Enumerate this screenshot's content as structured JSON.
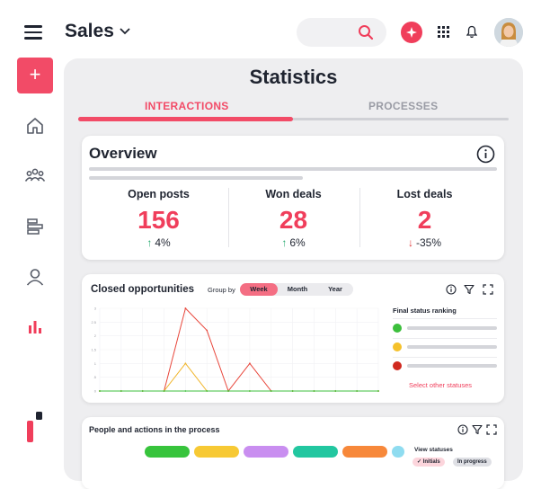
{
  "header": {
    "app_title": "Sales",
    "search": {
      "placeholder": ""
    },
    "colors": {
      "accent": "#f03e5b"
    }
  },
  "sidebar": {
    "add_label": "+",
    "items": [
      {
        "icon": "home-icon"
      },
      {
        "icon": "team-icon"
      },
      {
        "icon": "process-icon"
      },
      {
        "icon": "contact-icon"
      },
      {
        "icon": "statistics-icon",
        "active": true
      }
    ]
  },
  "page": {
    "title": "Statistics",
    "tabs": [
      {
        "label": "INTERACTIONS",
        "active": true
      },
      {
        "label": "PROCESSES",
        "active": false
      }
    ]
  },
  "overview": {
    "title": "Overview",
    "kpis": [
      {
        "label": "Open posts",
        "value": "156",
        "delta": "4%",
        "direction": "up"
      },
      {
        "label": "Won deals",
        "value": "28",
        "delta": "6%",
        "direction": "up"
      },
      {
        "label": "Lost deals",
        "value": "2",
        "delta": "-35%",
        "direction": "down"
      }
    ]
  },
  "closed_opportunities": {
    "title": "Closed opportunities",
    "group_by_label": "Group by",
    "group_options": [
      "Week",
      "Month",
      "Year"
    ],
    "group_selected": "Week",
    "ranking_title": "Final status ranking",
    "ranking": [
      {
        "color": "#3cbf3c"
      },
      {
        "color": "#f5c12b"
      },
      {
        "color": "#d0291f"
      }
    ],
    "select_link": "Select other statuses"
  },
  "chart_data": {
    "type": "line",
    "x": [
      0,
      1,
      2,
      3,
      4,
      5,
      6,
      7,
      8,
      9,
      10,
      11,
      12,
      13
    ],
    "series": [
      {
        "color": "#e8463b",
        "values": [
          0,
          0,
          0,
          0,
          3.0,
          2.2,
          0,
          1.0,
          0,
          0,
          0,
          0,
          0,
          0
        ]
      },
      {
        "color": "#f0b429",
        "values": [
          0,
          0,
          0,
          0,
          1.0,
          0,
          0,
          0,
          0,
          0,
          0,
          0,
          0,
          0
        ]
      },
      {
        "color": "#3cbf3c",
        "values": [
          0,
          0,
          0,
          0,
          0,
          0,
          0,
          0,
          0,
          0,
          0,
          0,
          0,
          0
        ]
      }
    ],
    "ylim": [
      0,
      3
    ],
    "yticks": [
      "3",
      "2.5",
      "2",
      "1.5",
      "1",
      ".5",
      "0"
    ],
    "grid": true,
    "title": "",
    "xlabel": "",
    "ylabel": ""
  },
  "people": {
    "title": "People and actions in the process",
    "pills": [
      {
        "color": "#37c43c"
      },
      {
        "color": "#f7c934"
      },
      {
        "color": "#c98ef0"
      },
      {
        "color": "#22c7a0"
      },
      {
        "color": "#f7883a"
      },
      {
        "color": "#8fdcf0"
      }
    ],
    "view_statuses_label": "View statuses",
    "chips": [
      "✓ Initials",
      "In progress"
    ]
  }
}
